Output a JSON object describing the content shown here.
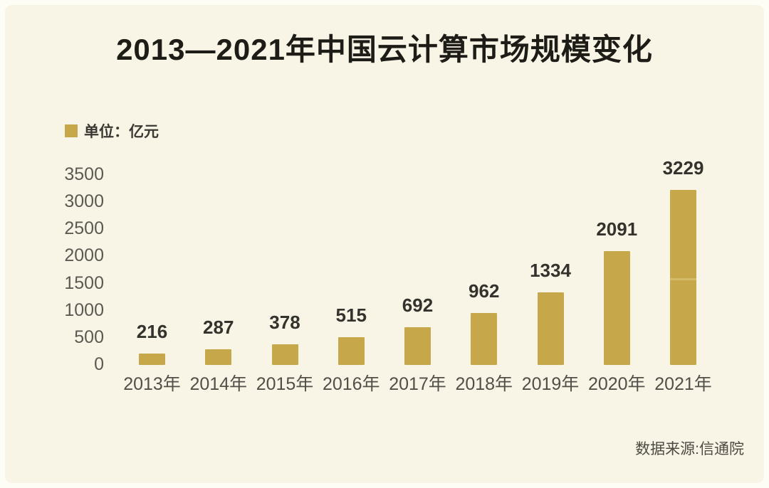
{
  "title": "2013—2021年中国云计算市场规模变化",
  "legend": {
    "label": "单位：亿元",
    "swatch_color": "#c6a84b"
  },
  "source": "数据来源:信通院",
  "colors": {
    "background": "#f8f4e6",
    "frame": "#fdfcf5",
    "bar": "#c6a84b",
    "bar_seam": "#d6bf70",
    "title_text": "#1d1c17",
    "axis_text": "#5b5a52",
    "value_text": "#33322c",
    "source_text": "#4c4a42"
  },
  "chart_data": {
    "type": "bar",
    "title": "2013—2021年中国云计算市场规模变化",
    "unit_label": "单位：亿元",
    "categories": [
      "2013年",
      "2014年",
      "2015年",
      "2016年",
      "2017年",
      "2018年",
      "2019年",
      "2020年",
      "2021年"
    ],
    "values": [
      216,
      287,
      378,
      515,
      692,
      962,
      1334,
      2091,
      3229
    ],
    "xlabel": "",
    "ylabel": "",
    "ylim": [
      0,
      3500
    ],
    "yticks": [
      0,
      500,
      1000,
      1500,
      2000,
      2500,
      3000,
      3500
    ],
    "grid": false,
    "legend_position": "top-left",
    "value_labels": true,
    "bar_color": "#c6a84b",
    "bar_seam_line": {
      "category": "2021年",
      "approx_value": 1600
    },
    "data_source": "数据来源:信通院"
  }
}
